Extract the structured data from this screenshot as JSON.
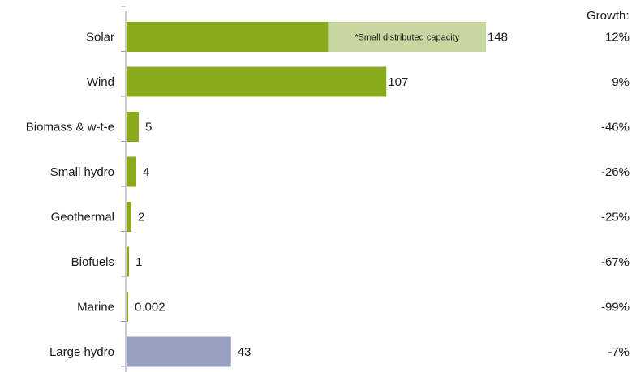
{
  "chart_data": {
    "type": "bar",
    "orientation": "horizontal",
    "categories": [
      "Solar",
      "Wind",
      "Biomass & w-t-e",
      "Small hydro",
      "Geothermal",
      "Biofuels",
      "Marine",
      "Large hydro"
    ],
    "values": [
      148,
      107,
      5,
      4,
      2,
      1,
      0.002,
      43
    ],
    "value_labels": [
      "148",
      "107",
      "5",
      "4",
      "2",
      "1",
      "0.002",
      "43"
    ],
    "stacked_segments": {
      "Solar": [
        {
          "name": "main",
          "value": 83,
          "color": "#8aab1c"
        },
        {
          "name": "small distributed",
          "value": 65,
          "color": "#c7d7a0"
        }
      ]
    },
    "annotation": "*Small distributed capacity",
    "growth_header": "Growth:",
    "growth": [
      "12%",
      "9%",
      "-46%",
      "-26%",
      "-25%",
      "-67%",
      "-99%",
      "-7%"
    ],
    "colors": {
      "renewable": "#8aab1c",
      "small_distributed": "#c7d7a0",
      "large_hydro": "#97a0c0"
    },
    "xlim": [
      0,
      150
    ],
    "grid": false,
    "legend": "none"
  }
}
